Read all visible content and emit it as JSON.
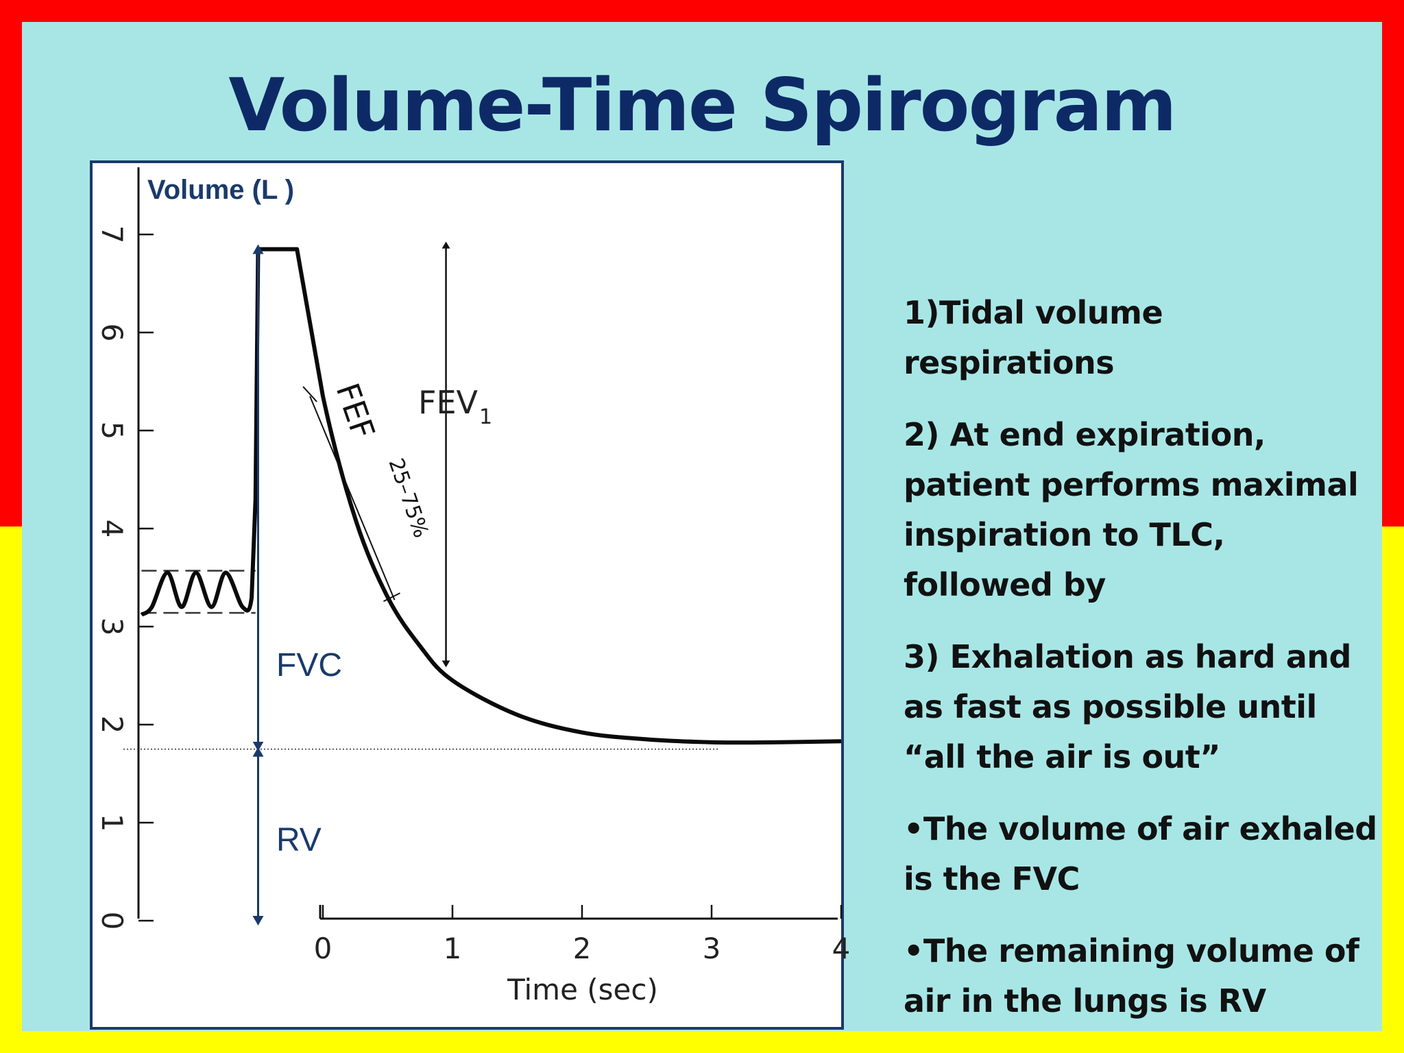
{
  "slide": {
    "title": "Volume-Time Spirogram",
    "colors": {
      "frame_top": "#ff0000",
      "frame_bottom": "#ffff00",
      "background": "#a8e6e6",
      "title": "#0d2a66",
      "annotation": "#1a3a6b"
    }
  },
  "chart_data": {
    "type": "line",
    "ylabel": "Volume (L )",
    "xlabel": "Time (sec)",
    "y_ticks": [
      0,
      1,
      2,
      3,
      4,
      5,
      6,
      7
    ],
    "x_ticks": [
      0,
      1,
      2,
      3,
      4
    ],
    "ylim": [
      0,
      7.4
    ],
    "xlim": [
      -1.4,
      4
    ],
    "grid": false,
    "series": [
      {
        "x": [
          -1.4,
          -1.32,
          -1.2,
          -1.09,
          -0.98,
          -0.86,
          -0.75,
          -0.62,
          -0.55,
          -0.52,
          -0.5,
          -0.2,
          0,
          0.25,
          0.5,
          0.75,
          1.0,
          1.5,
          2.0,
          2.5,
          3.0,
          3.5,
          4.0
        ],
        "y": [
          3.12,
          3.2,
          3.55,
          3.2,
          3.55,
          3.2,
          3.55,
          3.2,
          3.3,
          4.3,
          6.85,
          6.85,
          5.35,
          4.1,
          3.3,
          2.8,
          2.45,
          2.1,
          1.92,
          1.85,
          1.82,
          1.82,
          1.83
        ]
      }
    ],
    "reference_lines": {
      "tidal_dashes": [
        3.57,
        3.14
      ],
      "rv_level": 1.75
    },
    "annotations": {
      "fev1": "FEV",
      "fev1_sub": "1",
      "fef": "FEF",
      "fef_sub": "25–75%",
      "fvc": "FVC",
      "rv": "RV"
    },
    "markers": {
      "fev1_arrow": {
        "x": 0.95,
        "y_top": 6.85,
        "y_bottom": 2.62
      },
      "fvc_arrow": {
        "x": -0.5,
        "y_top": 6.85,
        "y_bottom": 1.75
      },
      "rv_arrow": {
        "x": -0.5,
        "y_top": 1.75,
        "y_bottom": 0
      },
      "fef_line": {
        "x1": -0.1,
        "y1": 5.35,
        "x2": 0.5,
        "y2": 3.3
      }
    }
  },
  "bullets": [
    "1)Tidal volume respirations",
    "2) At end expiration, patient performs maximal inspiration to TLC, followed by",
    "3) Exhalation as hard and as fast as possible until “all the air is out”",
    "•The volume of air exhaled is the FVC",
    "•The remaining volume of air in the lungs is RV"
  ]
}
